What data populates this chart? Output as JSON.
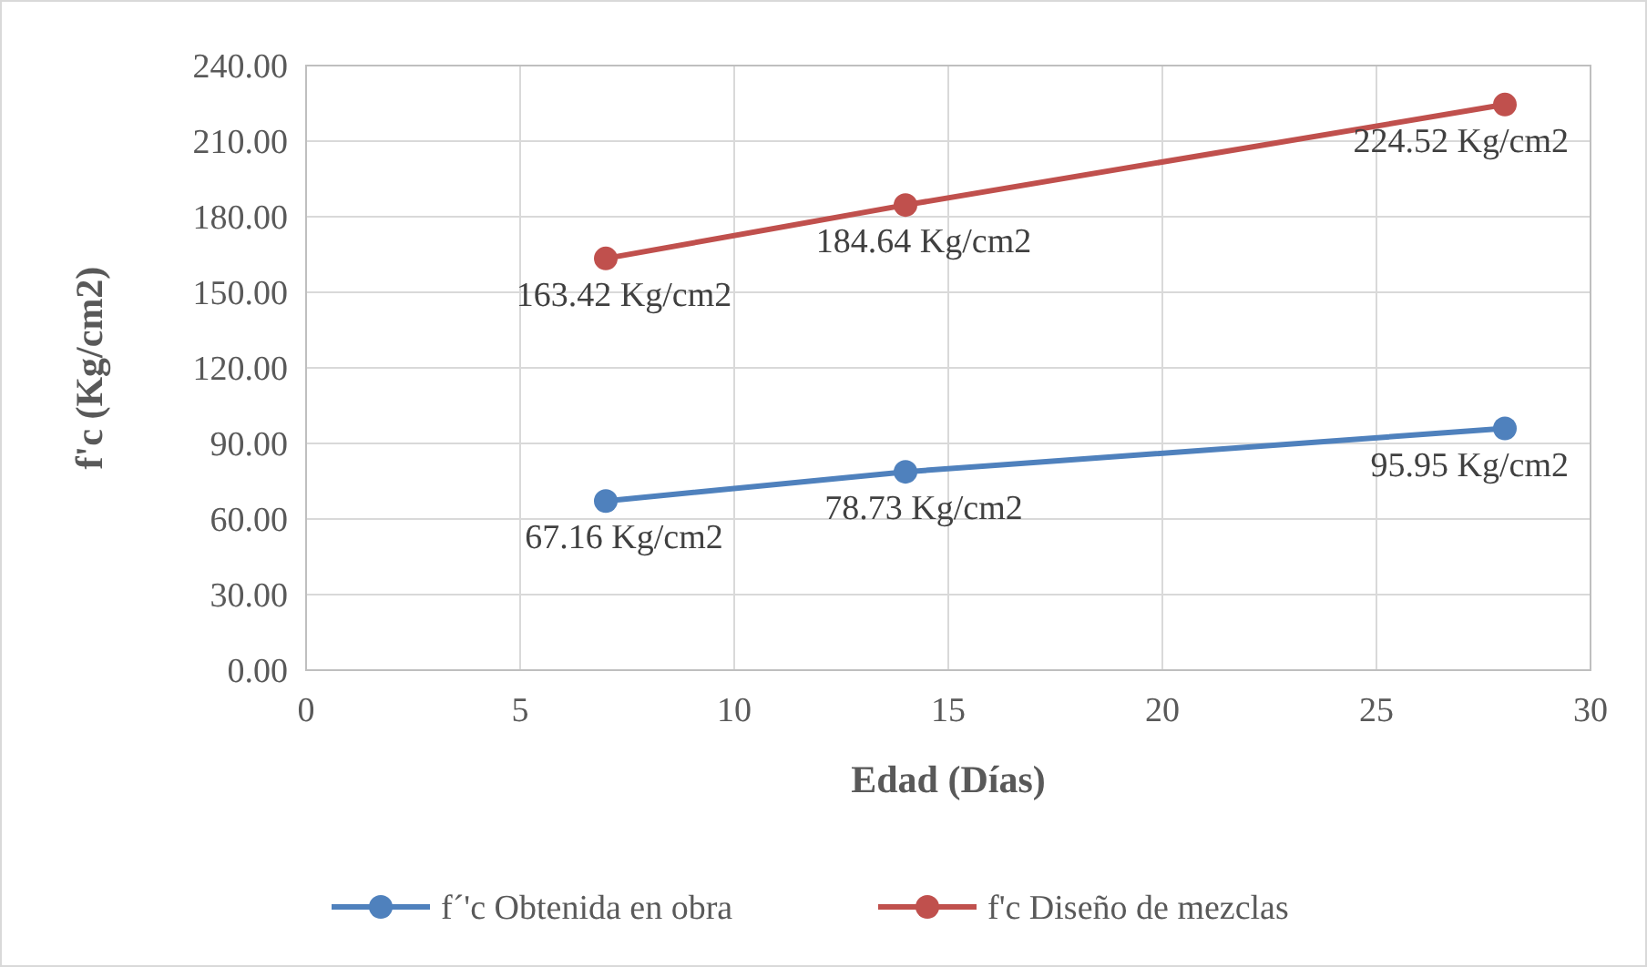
{
  "chart_data": {
    "type": "line",
    "xlabel": "Edad (Días)",
    "ylabel": "f'c (Kg/cm2)",
    "x": [
      7,
      14,
      28
    ],
    "series": [
      {
        "name": "f´'c Obtenida en obra",
        "color": "#4f81bd",
        "values": [
          67.16,
          78.73,
          95.95
        ],
        "value_labels": [
          "67.16 Kg/cm2",
          "78.73 Kg/cm2",
          "95.95 Kg/cm2"
        ]
      },
      {
        "name": "f'c Diseño de mezclas",
        "color": "#c0504d",
        "values": [
          163.42,
          184.64,
          224.52
        ],
        "value_labels": [
          "163.42 Kg/cm2",
          "184.64 Kg/cm2",
          "224.52 Kg/cm2"
        ]
      }
    ],
    "xlim": [
      0,
      30
    ],
    "xticks": [
      0,
      5,
      10,
      15,
      20,
      25,
      30
    ],
    "ylim": [
      0,
      240
    ],
    "yticks": [
      {
        "value": 0,
        "label": "0.00"
      },
      {
        "value": 30,
        "label": "30.00"
      },
      {
        "value": 60,
        "label": "60.00"
      },
      {
        "value": 90,
        "label": "90.00"
      },
      {
        "value": 120,
        "label": "120.00"
      },
      {
        "value": 150,
        "label": "150.00"
      },
      {
        "value": 180,
        "label": "180.00"
      },
      {
        "value": 210,
        "label": "210.00"
      },
      {
        "value": 240,
        "label": "240.00"
      }
    ],
    "grid": true,
    "legend": "bottom",
    "marker": "circle",
    "line_style": "solid"
  }
}
